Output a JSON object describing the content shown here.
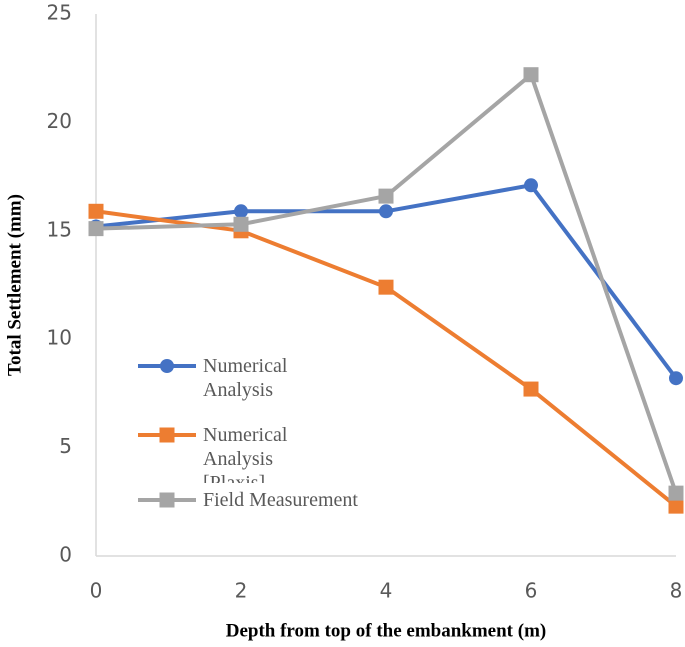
{
  "chart_data": {
    "type": "line",
    "x": [
      0,
      2,
      4,
      6,
      8
    ],
    "xlim": [
      0,
      8
    ],
    "xticks": [
      0,
      2,
      4,
      6,
      8
    ],
    "ylim": [
      0,
      25
    ],
    "yticks": [
      0,
      5,
      10,
      15,
      20,
      25
    ],
    "x_label": "Depth from top of the embankment (m)",
    "y_label": "Total Settlement (mm)",
    "grid": false,
    "series": [
      {
        "name": "Numerical Analysis",
        "color": "#4472c4",
        "marker": "circle",
        "values": [
          15.2,
          15.9,
          15.9,
          17.1,
          8.2
        ]
      },
      {
        "name": "Numerical Analysis [Plaxis]",
        "color": "#ed7d31",
        "marker": "square",
        "values": [
          15.9,
          15.0,
          12.4,
          7.7,
          2.3
        ]
      },
      {
        "name": "Field Measurement",
        "color": "#a5a5a5",
        "marker": "square",
        "values": [
          15.1,
          15.3,
          16.6,
          22.2,
          2.9
        ]
      }
    ]
  }
}
